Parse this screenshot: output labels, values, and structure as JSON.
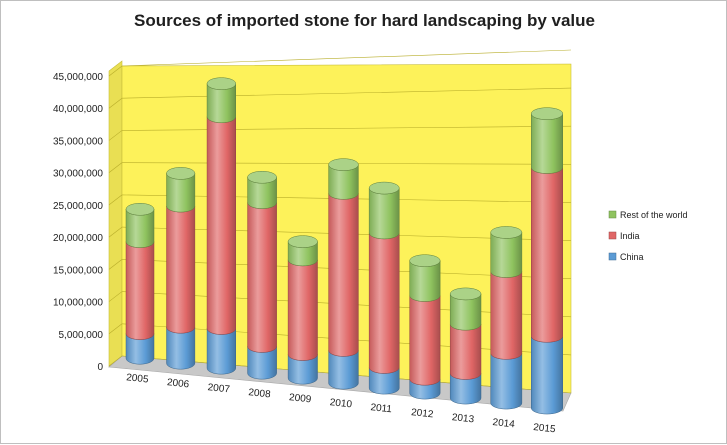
{
  "chart_data": {
    "type": "bar",
    "stacked": true,
    "style": "3d-cylinder",
    "title": "Sources of imported stone for hard landscaping by value",
    "categories": [
      "2005",
      "2006",
      "2007",
      "2008",
      "2009",
      "2010",
      "2011",
      "2012",
      "2013",
      "2014",
      "2015"
    ],
    "series": [
      {
        "name": "China",
        "color": "#5b9bd5",
        "values": [
          3800000,
          5500000,
          6000000,
          4000000,
          3500000,
          4800000,
          3000000,
          2000000,
          3500000,
          7000000,
          10000000
        ]
      },
      {
        "name": "India",
        "color": "#e06666",
        "values": [
          14200000,
          18500000,
          32000000,
          21500000,
          14000000,
          23000000,
          19500000,
          12000000,
          7000000,
          11500000,
          23500000
        ]
      },
      {
        "name": "Rest of the world",
        "color": "#8fc35f",
        "values": [
          5000000,
          5000000,
          5000000,
          3800000,
          2700000,
          4200000,
          6500000,
          5000000,
          4300000,
          5500000,
          7500000
        ]
      }
    ],
    "y_ticks": [
      "0",
      "5,000,000",
      "10,000,000",
      "15,000,000",
      "20,000,000",
      "25,000,000",
      "30,000,000",
      "35,000,000",
      "40,000,000",
      "45,000,000"
    ],
    "ylim": [
      0,
      45000000
    ],
    "xlabel": "",
    "ylabel": "",
    "grid": true,
    "legend": "right",
    "wall_color": "#fdf25a",
    "floor_color": "#c8c8c8"
  }
}
